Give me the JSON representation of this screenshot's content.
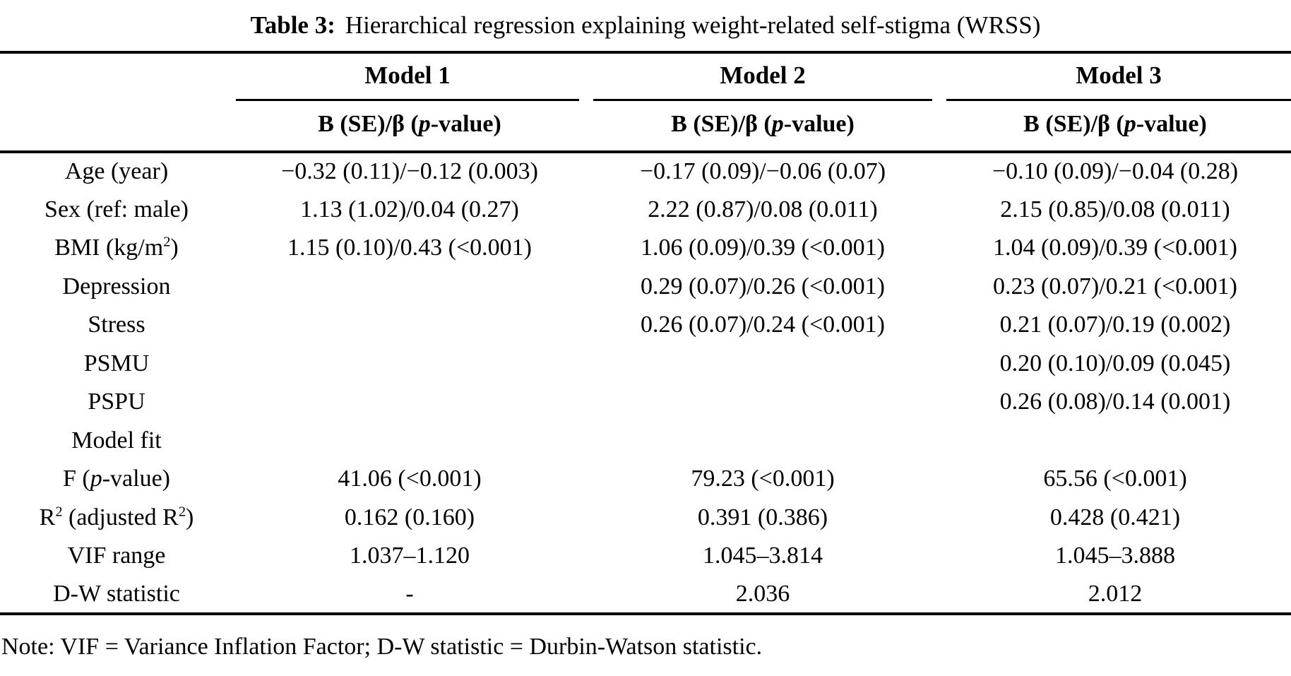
{
  "title": {
    "prefix": "Table 3:",
    "text": "Hierarchical regression explaining weight-related self-stigma (WRSS)"
  },
  "header": {
    "models": [
      {
        "name": "Model 1"
      },
      {
        "name": "Model 2"
      },
      {
        "name": "Model 3"
      }
    ],
    "subheader_rich": [
      {
        "t": "B (SE)/β ("
      },
      {
        "t": "p",
        "i": true
      },
      {
        "t": "-value)"
      }
    ]
  },
  "rows": [
    {
      "label_rich": [
        {
          "t": "Age (year)"
        }
      ],
      "values": [
        "−0.32 (0.11)/−0.12 (0.003)",
        "−0.17 (0.09)/−0.06 (0.07)",
        "−0.10 (0.09)/−0.04 (0.28)"
      ]
    },
    {
      "label_rich": [
        {
          "t": "Sex (ref: male)"
        }
      ],
      "values": [
        "1.13 (1.02)/0.04 (0.27)",
        "2.22 (0.87)/0.08 (0.011)",
        "2.15 (0.85)/0.08 (0.011)"
      ]
    },
    {
      "label_rich": [
        {
          "t": "BMI (kg/m"
        },
        {
          "t": "2",
          "sup": true
        },
        {
          "t": ")"
        }
      ],
      "values": [
        "1.15 (0.10)/0.43 (<0.001)",
        "1.06 (0.09)/0.39 (<0.001)",
        "1.04 (0.09)/0.39 (<0.001)"
      ]
    },
    {
      "label_rich": [
        {
          "t": "Depression"
        }
      ],
      "values": [
        "",
        "0.29 (0.07)/0.26 (<0.001)",
        "0.23 (0.07)/0.21 (<0.001)"
      ]
    },
    {
      "label_rich": [
        {
          "t": "Stress"
        }
      ],
      "values": [
        "",
        "0.26 (0.07)/0.24 (<0.001)",
        "0.21 (0.07)/0.19 (0.002)"
      ]
    },
    {
      "label_rich": [
        {
          "t": "PSMU"
        }
      ],
      "values": [
        "",
        "",
        "0.20 (0.10)/0.09 (0.045)"
      ]
    },
    {
      "label_rich": [
        {
          "t": "PSPU"
        }
      ],
      "values": [
        "",
        "",
        "0.26 (0.08)/0.14 (0.001)"
      ]
    },
    {
      "label_rich": [
        {
          "t": "Model fit"
        }
      ],
      "values": [
        "",
        "",
        ""
      ]
    },
    {
      "label_rich": [
        {
          "t": "F ("
        },
        {
          "t": "p",
          "i": true
        },
        {
          "t": "-value)"
        }
      ],
      "values": [
        "41.06 (<0.001)",
        "79.23 (<0.001)",
        "65.56 (<0.001)"
      ]
    },
    {
      "label_rich": [
        {
          "t": "R"
        },
        {
          "t": "2",
          "sup": true
        },
        {
          "t": " (adjusted R"
        },
        {
          "t": "2",
          "sup": true
        },
        {
          "t": ")"
        }
      ],
      "values": [
        "0.162 (0.160)",
        "0.391 (0.386)",
        "0.428 (0.421)"
      ]
    },
    {
      "label_rich": [
        {
          "t": "VIF range"
        }
      ],
      "values": [
        "1.037–1.120",
        "1.045–3.814",
        "1.045–3.888"
      ]
    },
    {
      "label_rich": [
        {
          "t": "D-W statistic"
        }
      ],
      "values": [
        "-",
        "2.036",
        "2.012"
      ]
    }
  ],
  "note": "Note: VIF = Variance Inflation Factor; D-W statistic = Durbin-Watson statistic."
}
